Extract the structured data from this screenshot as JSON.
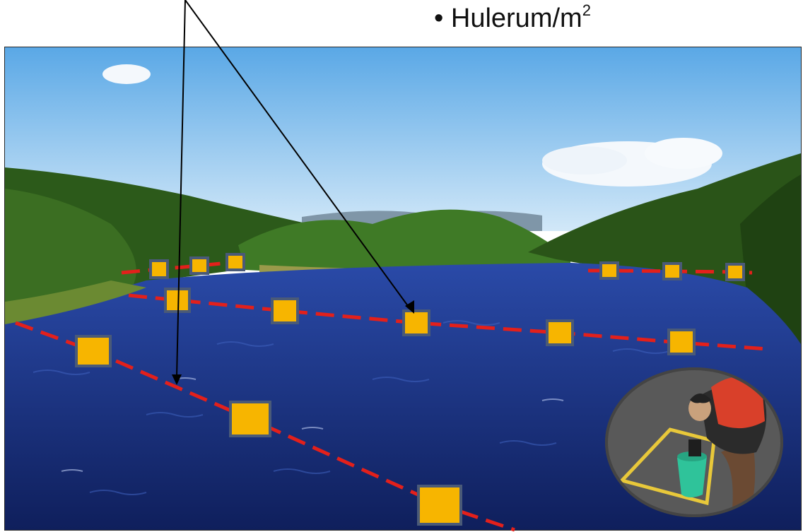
{
  "slide": {
    "bullet": "•",
    "text": "Hulerum/m",
    "superscript": "2"
  },
  "photo": {
    "subject": "river-sampling-transects",
    "colors": {
      "sky_top": "#6fb4ea",
      "sky_bottom": "#cfe6f8",
      "forest": "#2f5a1c",
      "water": "#1b2f7a",
      "transect_line": "#e3201b",
      "sample_square": "#f7b500",
      "square_border": "#4a5a78"
    }
  },
  "inset": {
    "subject": "person-sampling-with-frame-and-bucket",
    "colors": {
      "life_vest": "#d9402a",
      "bucket": "#2fc39a",
      "frame": "#e8c83a",
      "border": "#444444"
    }
  }
}
